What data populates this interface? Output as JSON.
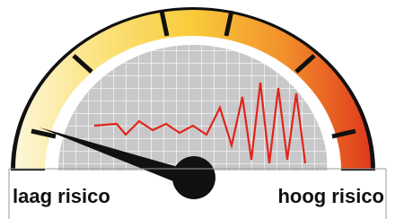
{
  "labels": {
    "low": "laag risico",
    "high": "hoog risico"
  }
}
